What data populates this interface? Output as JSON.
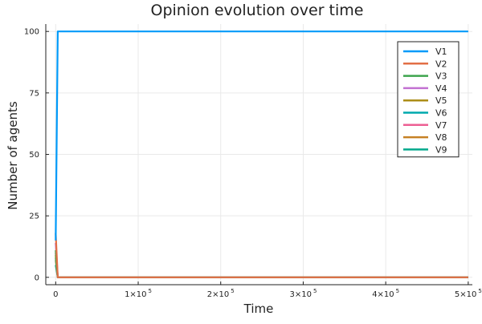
{
  "chart_data": {
    "type": "line",
    "title": "Opinion evolution over time",
    "xlabel": "Time",
    "ylabel": "Number of agents",
    "xlim": [
      -12000,
      505000
    ],
    "ylim": [
      -3,
      103
    ],
    "grid": true,
    "legend_position": "top-right",
    "x_ticks": [
      {
        "value": 0,
        "base": "0",
        "exp": ""
      },
      {
        "value": 100000,
        "base": "1×10",
        "exp": "5"
      },
      {
        "value": 200000,
        "base": "2×10",
        "exp": "5"
      },
      {
        "value": 300000,
        "base": "3×10",
        "exp": "5"
      },
      {
        "value": 400000,
        "base": "4×10",
        "exp": "5"
      },
      {
        "value": 500000,
        "base": "5×10",
        "exp": "5"
      }
    ],
    "y_ticks": [
      {
        "value": 0,
        "label": "0"
      },
      {
        "value": 25,
        "label": "25"
      },
      {
        "value": 50,
        "label": "50"
      },
      {
        "value": 75,
        "label": "75"
      },
      {
        "value": 100,
        "label": "100"
      }
    ],
    "series": [
      {
        "name": "V1",
        "color": "#009af9",
        "x": [
          0,
          2500,
          500000
        ],
        "y": [
          15,
          100,
          100
        ]
      },
      {
        "name": "V2",
        "color": "#e26f46",
        "x": [
          0,
          2500,
          500000
        ],
        "y": [
          18,
          0,
          0
        ]
      },
      {
        "name": "V3",
        "color": "#3da44d",
        "x": [
          0,
          2500,
          500000
        ],
        "y": [
          11,
          0,
          0
        ]
      },
      {
        "name": "V4",
        "color": "#c271d2",
        "x": [
          0,
          2500,
          500000
        ],
        "y": [
          14,
          0,
          0
        ]
      },
      {
        "name": "V5",
        "color": "#ac8e18",
        "x": [
          0,
          2500,
          500000
        ],
        "y": [
          9,
          0,
          0
        ]
      },
      {
        "name": "V6",
        "color": "#00a9ad",
        "x": [
          0,
          2500,
          500000
        ],
        "y": [
          8,
          0,
          0
        ]
      },
      {
        "name": "V7",
        "color": "#ed5e93",
        "x": [
          0,
          2500,
          500000
        ],
        "y": [
          10,
          0,
          0
        ]
      },
      {
        "name": "V8",
        "color": "#c68125",
        "x": [
          0,
          2500,
          500000
        ],
        "y": [
          7,
          0,
          0
        ]
      },
      {
        "name": "V9",
        "color": "#00a98d",
        "x": [
          0,
          2500,
          500000
        ],
        "y": [
          5,
          0,
          0
        ]
      }
    ]
  }
}
